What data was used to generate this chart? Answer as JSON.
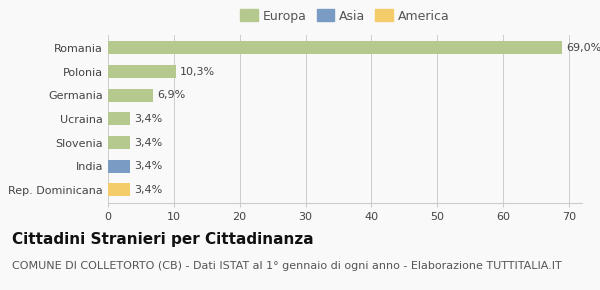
{
  "categories": [
    "Romania",
    "Polonia",
    "Germania",
    "Ucraina",
    "Slovenia",
    "India",
    "Rep. Dominicana"
  ],
  "values": [
    69.0,
    10.3,
    6.9,
    3.4,
    3.4,
    3.4,
    3.4
  ],
  "labels": [
    "69,0%",
    "10,3%",
    "6,9%",
    "3,4%",
    "3,4%",
    "3,4%",
    "3,4%"
  ],
  "colors": [
    "#b5c98e",
    "#b5c98e",
    "#b5c98e",
    "#b5c98e",
    "#b5c98e",
    "#7a9cc4",
    "#f5cc6a"
  ],
  "legend": [
    {
      "label": "Europa",
      "color": "#b5c98e"
    },
    {
      "label": "Asia",
      "color": "#7a9cc4"
    },
    {
      "label": "America",
      "color": "#f5cc6a"
    }
  ],
  "xlim": [
    0,
    72
  ],
  "xticks": [
    0,
    10,
    20,
    30,
    40,
    50,
    60,
    70
  ],
  "title": "Cittadini Stranieri per Cittadinanza",
  "subtitle": "COMUNE DI COLLETORTO (CB) - Dati ISTAT al 1° gennaio di ogni anno - Elaborazione TUTTITALIA.IT",
  "background_color": "#f9f9f9",
  "bar_height": 0.55,
  "grid_color": "#cccccc",
  "title_fontsize": 11,
  "subtitle_fontsize": 8,
  "label_fontsize": 8,
  "tick_fontsize": 8,
  "legend_fontsize": 9
}
